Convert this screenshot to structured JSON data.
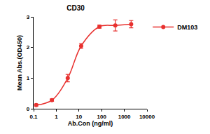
{
  "chart_data": {
    "type": "line",
    "title": "CD30",
    "x_label": "Ab.Con (ng/ml)",
    "y_label": "Mean Abs.(OD450)",
    "series": [
      {
        "name": "DM103",
        "color": "#e8312f",
        "marker": "circle",
        "line_style": "solid",
        "x": [
          0.13,
          0.64,
          3.2,
          12.5,
          80,
          400,
          2000
        ],
        "values": [
          0.12,
          0.28,
          1.0,
          2.05,
          2.68,
          2.72,
          2.76
        ],
        "error": [
          0.03,
          0.04,
          0.12,
          0.08,
          0.05,
          0.18,
          0.12
        ]
      }
    ],
    "xlim": [
      0.1,
      10000
    ],
    "xticks": [
      0.1,
      1,
      10,
      100,
      1000,
      10000
    ],
    "ylim": [
      0,
      3
    ],
    "yticks": [
      0,
      1,
      2,
      3
    ],
    "log": "x",
    "grid": false,
    "legend": "upper right"
  }
}
